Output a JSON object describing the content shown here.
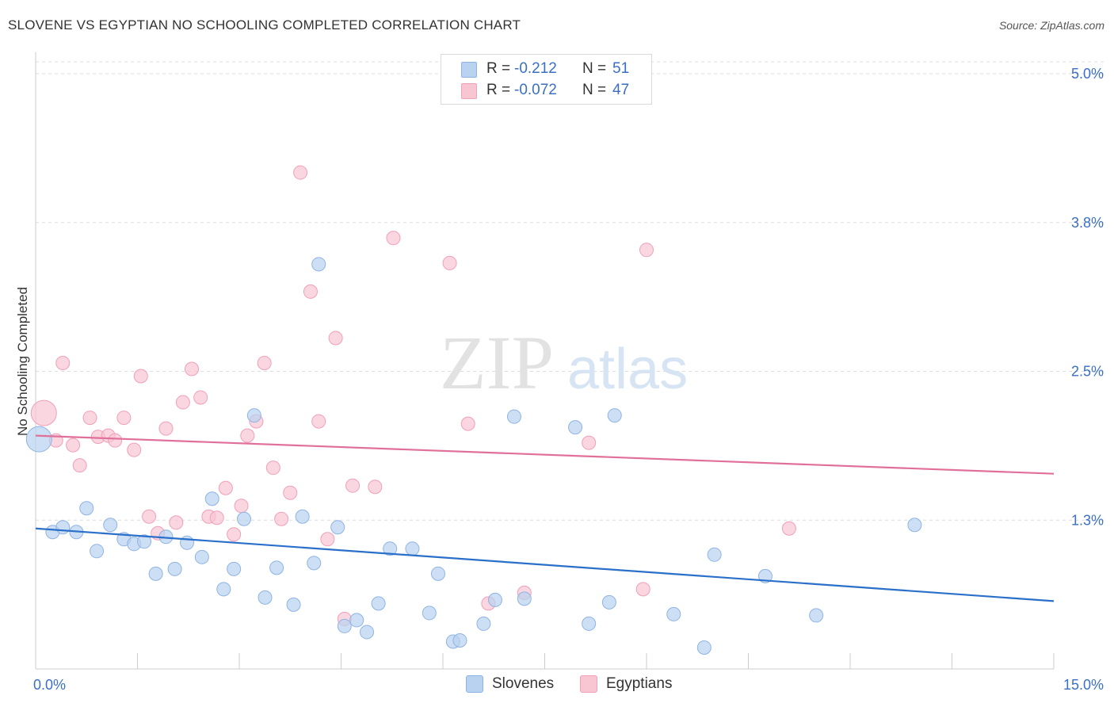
{
  "title": "SLOVENE VS EGYPTIAN NO SCHOOLING COMPLETED CORRELATION CHART",
  "source": "Source: ZipAtlas.com",
  "watermark": {
    "zip": "ZIP",
    "atlas": "atlas"
  },
  "legend_top": [
    {
      "r_label": "R =",
      "r_value": "-0.212",
      "n_label": "N =",
      "n_value": "51"
    },
    {
      "r_label": "R =",
      "r_value": "-0.072",
      "n_label": "N =",
      "n_value": "47"
    }
  ],
  "legend_bottom": [
    "Slovenes",
    "Egyptians"
  ],
  "colors": {
    "blue_fill": "#b8d2f0",
    "blue_stroke": "#8fb4e3",
    "blue_line": "#2a6fc9",
    "pink_fill": "#f8c5d3",
    "pink_stroke": "#f0a0b8",
    "pink_line": "#e0709a",
    "tick_label": "#3a6fc4",
    "grid": "#dddddd"
  },
  "chart_data": {
    "type": "scatter",
    "title": "SLOVENE VS EGYPTIAN NO SCHOOLING COMPLETED CORRELATION CHART",
    "xlabel": "",
    "ylabel": "No Schooling Completed",
    "xlim": [
      0,
      15
    ],
    "ylim": [
      0,
      5.1
    ],
    "x_tick_labels": [
      {
        "value": 0,
        "label": "0.0%"
      },
      {
        "value": 15,
        "label": "15.0%"
      }
    ],
    "y_tick_labels": [
      {
        "value": 1.25,
        "label": "1.3%"
      },
      {
        "value": 2.5,
        "label": "2.5%"
      },
      {
        "value": 3.75,
        "label": "3.8%"
      },
      {
        "value": 5.0,
        "label": "5.0%"
      }
    ],
    "series": [
      {
        "name": "Slovenes",
        "color": "#b8d2f0",
        "trend": {
          "x": [
            0,
            15
          ],
          "y": [
            1.18,
            0.57
          ]
        },
        "points": [
          {
            "x": 0.05,
            "y": 1.93,
            "large": true
          },
          {
            "x": 0.25,
            "y": 1.15
          },
          {
            "x": 0.4,
            "y": 1.19
          },
          {
            "x": 0.6,
            "y": 1.15
          },
          {
            "x": 0.75,
            "y": 1.35
          },
          {
            "x": 0.9,
            "y": 0.99
          },
          {
            "x": 1.1,
            "y": 1.21
          },
          {
            "x": 1.3,
            "y": 1.09
          },
          {
            "x": 1.45,
            "y": 1.05
          },
          {
            "x": 1.6,
            "y": 1.07
          },
          {
            "x": 1.77,
            "y": 0.8
          },
          {
            "x": 1.92,
            "y": 1.11
          },
          {
            "x": 2.05,
            "y": 0.84
          },
          {
            "x": 2.23,
            "y": 1.06
          },
          {
            "x": 2.45,
            "y": 0.94
          },
          {
            "x": 2.6,
            "y": 1.43
          },
          {
            "x": 2.77,
            "y": 0.67
          },
          {
            "x": 2.92,
            "y": 0.84
          },
          {
            "x": 3.07,
            "y": 1.26
          },
          {
            "x": 3.22,
            "y": 2.13
          },
          {
            "x": 3.38,
            "y": 0.6
          },
          {
            "x": 3.55,
            "y": 0.85
          },
          {
            "x": 3.8,
            "y": 0.54
          },
          {
            "x": 3.93,
            "y": 1.28
          },
          {
            "x": 4.1,
            "y": 0.89
          },
          {
            "x": 4.17,
            "y": 3.4
          },
          {
            "x": 4.45,
            "y": 1.19
          },
          {
            "x": 4.55,
            "y": 0.36
          },
          {
            "x": 4.73,
            "y": 0.41
          },
          {
            "x": 4.88,
            "y": 0.31
          },
          {
            "x": 5.05,
            "y": 0.55
          },
          {
            "x": 5.22,
            "y": 1.01
          },
          {
            "x": 5.55,
            "y": 1.01
          },
          {
            "x": 5.8,
            "y": 0.47
          },
          {
            "x": 5.93,
            "y": 0.8
          },
          {
            "x": 6.15,
            "y": 0.23
          },
          {
            "x": 6.25,
            "y": 0.24
          },
          {
            "x": 6.6,
            "y": 0.38
          },
          {
            "x": 6.77,
            "y": 0.58
          },
          {
            "x": 7.05,
            "y": 2.12
          },
          {
            "x": 7.2,
            "y": 0.59
          },
          {
            "x": 7.95,
            "y": 2.03
          },
          {
            "x": 8.15,
            "y": 0.38
          },
          {
            "x": 8.45,
            "y": 0.56
          },
          {
            "x": 8.53,
            "y": 2.13
          },
          {
            "x": 9.4,
            "y": 0.46
          },
          {
            "x": 9.85,
            "y": 0.18
          },
          {
            "x": 10.0,
            "y": 0.96
          },
          {
            "x": 10.75,
            "y": 0.78
          },
          {
            "x": 11.5,
            "y": 0.45
          },
          {
            "x": 12.95,
            "y": 1.21
          }
        ]
      },
      {
        "name": "Egyptians",
        "color": "#f8c5d3",
        "trend": {
          "x": [
            0,
            15
          ],
          "y": [
            1.96,
            1.64
          ]
        },
        "points": [
          {
            "x": 0.12,
            "y": 2.15,
            "large": true
          },
          {
            "x": 0.3,
            "y": 1.92
          },
          {
            "x": 0.4,
            "y": 2.57
          },
          {
            "x": 0.55,
            "y": 1.88
          },
          {
            "x": 0.65,
            "y": 1.71
          },
          {
            "x": 0.8,
            "y": 2.11
          },
          {
            "x": 0.92,
            "y": 1.95
          },
          {
            "x": 1.07,
            "y": 1.96
          },
          {
            "x": 1.17,
            "y": 1.92
          },
          {
            "x": 1.3,
            "y": 2.11
          },
          {
            "x": 1.45,
            "y": 1.84
          },
          {
            "x": 1.55,
            "y": 2.46
          },
          {
            "x": 1.67,
            "y": 1.28
          },
          {
            "x": 1.8,
            "y": 1.14
          },
          {
            "x": 1.92,
            "y": 2.02
          },
          {
            "x": 2.07,
            "y": 1.23
          },
          {
            "x": 2.17,
            "y": 2.24
          },
          {
            "x": 2.3,
            "y": 2.52
          },
          {
            "x": 2.43,
            "y": 2.28
          },
          {
            "x": 2.55,
            "y": 1.28
          },
          {
            "x": 2.67,
            "y": 1.27
          },
          {
            "x": 2.8,
            "y": 1.52
          },
          {
            "x": 2.92,
            "y": 1.13
          },
          {
            "x": 3.03,
            "y": 1.37
          },
          {
            "x": 3.12,
            "y": 1.96
          },
          {
            "x": 3.25,
            "y": 2.08
          },
          {
            "x": 3.37,
            "y": 2.57
          },
          {
            "x": 3.5,
            "y": 1.69
          },
          {
            "x": 3.62,
            "y": 1.26
          },
          {
            "x": 3.75,
            "y": 1.48
          },
          {
            "x": 3.9,
            "y": 4.17
          },
          {
            "x": 4.05,
            "y": 3.17
          },
          {
            "x": 4.17,
            "y": 2.08
          },
          {
            "x": 4.3,
            "y": 1.09
          },
          {
            "x": 4.42,
            "y": 2.78
          },
          {
            "x": 4.55,
            "y": 0.42
          },
          {
            "x": 4.67,
            "y": 1.54
          },
          {
            "x": 5.0,
            "y": 1.53
          },
          {
            "x": 5.27,
            "y": 3.62
          },
          {
            "x": 6.1,
            "y": 3.41
          },
          {
            "x": 6.37,
            "y": 2.06
          },
          {
            "x": 6.67,
            "y": 0.55
          },
          {
            "x": 7.2,
            "y": 0.64
          },
          {
            "x": 8.15,
            "y": 1.9
          },
          {
            "x": 8.95,
            "y": 0.67
          },
          {
            "x": 9.0,
            "y": 3.52
          },
          {
            "x": 11.1,
            "y": 1.18
          }
        ]
      }
    ]
  }
}
